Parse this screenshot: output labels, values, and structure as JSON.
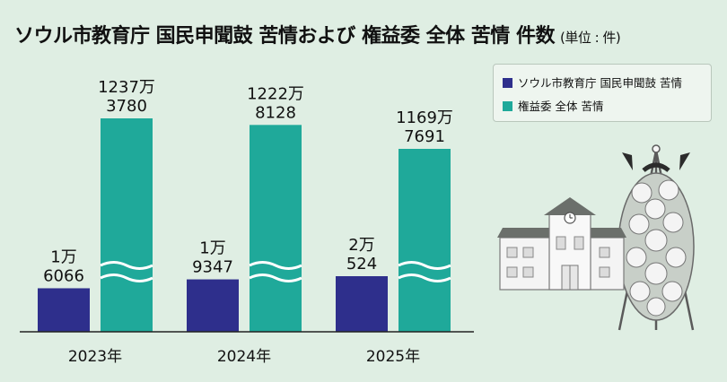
{
  "title": "ソウル市教育庁 国民申聞鼓 苦情および 権益委 全体 苦情 件数",
  "unit": "(単位 : 件)",
  "colors": {
    "series_a": "#2e2f8c",
    "series_b": "#1fa99a",
    "background": "#dfeee3"
  },
  "chart_data": {
    "type": "bar",
    "title": "ソウル市教育庁 国民申聞鼓 苦情および 権益委 全体 苦情 件数",
    "categories": [
      "2023年",
      "2024年",
      "2025年"
    ],
    "series": [
      {
        "name": "ソウル市教育庁 国民申聞鼓 苦情",
        "values": [
          16066,
          19347,
          20524
        ],
        "labels": [
          [
            "1万",
            "6066"
          ],
          [
            "1万",
            "9347"
          ],
          [
            "2万",
            "524"
          ]
        ]
      },
      {
        "name": "権益委 全体 苦情",
        "values": [
          12373780,
          12228128,
          11697691
        ],
        "labels": [
          [
            "1237万",
            "3780"
          ],
          [
            "1222万",
            "8128"
          ],
          [
            "1169万",
            "7691"
          ]
        ]
      }
    ],
    "axis_break": true,
    "legend_position": "top-right",
    "grid": false
  }
}
